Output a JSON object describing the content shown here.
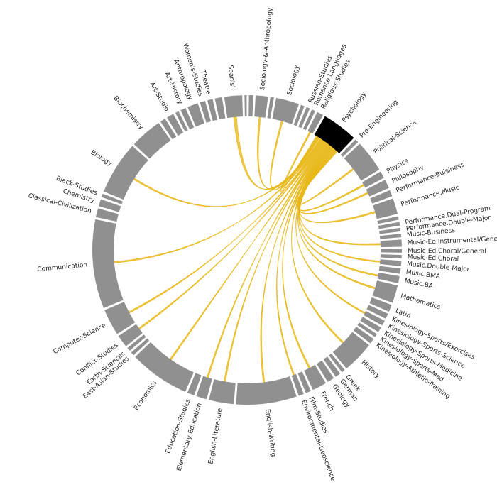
{
  "chart_data": {
    "type": "chord",
    "colors": {
      "segment": "#909090",
      "highlight": "#000000",
      "ribbon": "#e8b818",
      "label": "#222222",
      "background": "#ffffff"
    },
    "highlighted": "Psychology",
    "segments": [
      {
        "name": "Spanish",
        "w": 5.0,
        "labeled": true
      },
      {
        "name": "",
        "w": 0.6,
        "labeled": false
      },
      {
        "name": "",
        "w": 1.2,
        "labeled": false
      },
      {
        "name": "Sociology-&-Anthropology",
        "w": 3.5,
        "labeled": true
      },
      {
        "name": "",
        "w": 1.0,
        "labeled": false
      },
      {
        "name": "Sociology",
        "w": 6.5,
        "labeled": true
      },
      {
        "name": "",
        "w": 1.0,
        "labeled": false
      },
      {
        "name": "Russian-Studies",
        "w": 1.0,
        "labeled": true
      },
      {
        "name": "Romance-Languages",
        "w": 1.0,
        "labeled": true
      },
      {
        "name": "Religious-Studies",
        "w": 1.8,
        "labeled": true
      },
      {
        "name": "Psychology",
        "w": 10.0,
        "labeled": true
      },
      {
        "name": "Pre-Engineering",
        "w": 1.0,
        "labeled": true
      },
      {
        "name": "Political-Science",
        "w": 9.0,
        "labeled": true
      },
      {
        "name": "Physics",
        "w": 2.0,
        "labeled": true
      },
      {
        "name": "Philosophy",
        "w": 2.5,
        "labeled": true
      },
      {
        "name": "Performance-Buisiness",
        "w": 1.8,
        "labeled": true
      },
      {
        "name": "Performance.Music",
        "w": 4.5,
        "labeled": true
      },
      {
        "name": "",
        "w": 1.0,
        "labeled": false
      },
      {
        "name": "Performance.Dual-Program",
        "w": 1.0,
        "labeled": true
      },
      {
        "name": "Performance.Double-Major",
        "w": 1.0,
        "labeled": true
      },
      {
        "name": "Music-Business",
        "w": 1.0,
        "labeled": true
      },
      {
        "name": "Music-Ed.Instrumental/General",
        "w": 2.0,
        "labeled": true
      },
      {
        "name": "Music-Ed.Choral/General",
        "w": 1.0,
        "labeled": true
      },
      {
        "name": "Music-Ed.Choral",
        "w": 1.0,
        "labeled": true
      },
      {
        "name": "Music.Double-Major",
        "w": 1.5,
        "labeled": true
      },
      {
        "name": "Music.BMA",
        "w": 1.5,
        "labeled": true
      },
      {
        "name": "Music.BA",
        "w": 2.0,
        "labeled": true
      },
      {
        "name": "Mathematics",
        "w": 5.0,
        "labeled": true
      },
      {
        "name": "Latin",
        "w": 2.0,
        "labeled": true
      },
      {
        "name": "Kinesiology-Sports/Exercises",
        "w": 1.5,
        "labeled": true
      },
      {
        "name": "Kinesiology-Sports-Science",
        "w": 1.5,
        "labeled": true
      },
      {
        "name": "Kinesiology-Sports-Medicine",
        "w": 1.5,
        "labeled": true
      },
      {
        "name": "Kinesiology-Sports-Med",
        "w": 1.0,
        "labeled": true
      },
      {
        "name": "Kinesiology-Athletic-Training",
        "w": 1.5,
        "labeled": true
      },
      {
        "name": "History",
        "w": 9.0,
        "labeled": true
      },
      {
        "name": "Greek",
        "w": 1.0,
        "labeled": true
      },
      {
        "name": "German",
        "w": 1.5,
        "labeled": true
      },
      {
        "name": "Geology",
        "w": 2.0,
        "labeled": true
      },
      {
        "name": "French",
        "w": 4.0,
        "labeled": true
      },
      {
        "name": "Film-Studies",
        "w": 1.5,
        "labeled": true
      },
      {
        "name": "Environmental-Geoscience",
        "w": 1.5,
        "labeled": true
      },
      {
        "name": "English-Writing",
        "w": 17.0,
        "labeled": true
      },
      {
        "name": "English-Literature",
        "w": 7.0,
        "labeled": true
      },
      {
        "name": "Elementary-Education",
        "w": 3.0,
        "labeled": true
      },
      {
        "name": "Education-Studies",
        "w": 2.0,
        "labeled": true
      },
      {
        "name": "Economics",
        "w": 17.0,
        "labeled": true
      },
      {
        "name": "East-Asian-Studies",
        "w": 1.0,
        "labeled": true
      },
      {
        "name": "Earth-Sciences",
        "w": 1.0,
        "labeled": true
      },
      {
        "name": "Conflict-Studies",
        "w": 3.5,
        "labeled": true
      },
      {
        "name": "Computer-Science",
        "w": 7.5,
        "labeled": true
      },
      {
        "name": "Communication",
        "w": 25.0,
        "labeled": true
      },
      {
        "name": "Classical-Civilization",
        "w": 2.5,
        "labeled": true
      },
      {
        "name": "Chemistry",
        "w": 2.0,
        "labeled": true
      },
      {
        "name": "Black-Studies",
        "w": 1.0,
        "labeled": true
      },
      {
        "name": "Biology",
        "w": 15.0,
        "labeled": true
      },
      {
        "name": "Biochemistry",
        "w": 9.0,
        "labeled": true
      },
      {
        "name": "",
        "w": 1.5,
        "labeled": false
      },
      {
        "name": "Art-Studio",
        "w": 2.0,
        "labeled": true
      },
      {
        "name": "",
        "w": 1.0,
        "labeled": false
      },
      {
        "name": "Art-History",
        "w": 1.5,
        "labeled": true
      },
      {
        "name": "Anthropology",
        "w": 3.0,
        "labeled": true
      },
      {
        "name": "Women's-Studies",
        "w": 1.5,
        "labeled": true
      },
      {
        "name": "Theatre",
        "w": 1.5,
        "labeled": true
      },
      {
        "name": "",
        "w": 2.0,
        "labeled": false
      }
    ],
    "links": [
      {
        "target": "Spanish",
        "w": 2.0
      },
      {
        "target": "Sociology-&-Anthropology",
        "w": 1.0
      },
      {
        "target": "Sociology",
        "w": 1.0
      },
      {
        "target": "Religious-Studies",
        "w": 1.0
      },
      {
        "target": "Political-Science",
        "w": 1.0
      },
      {
        "target": "Physics",
        "w": 1.0
      },
      {
        "target": "Philosophy",
        "w": 1.0
      },
      {
        "target": "Performance.Music",
        "w": 1.0
      },
      {
        "target": "Music-Ed.Instrumental/General",
        "w": 1.0
      },
      {
        "target": "Music.Double-Major",
        "w": 1.0
      },
      {
        "target": "Music.BA",
        "w": 1.0
      },
      {
        "target": "Mathematics",
        "w": 1.0
      },
      {
        "target": "Kinesiology-Sports-Science",
        "w": 1.0
      },
      {
        "target": "History",
        "w": 1.0
      },
      {
        "target": "French",
        "w": 1.0
      },
      {
        "target": "Environmental-Geoscience",
        "w": 1.0
      },
      {
        "target": "English-Writing",
        "w": 1.0
      },
      {
        "target": "English-Literature",
        "w": 1.0
      },
      {
        "target": "Elementary-Education",
        "w": 1.0
      },
      {
        "target": "Economics",
        "w": 1.0
      },
      {
        "target": "Conflict-Studies",
        "w": 1.0
      },
      {
        "target": "Computer-Science",
        "w": 1.0
      },
      {
        "target": "Communication",
        "w": 1.0
      },
      {
        "target": "Biology",
        "w": 1.0
      }
    ]
  }
}
